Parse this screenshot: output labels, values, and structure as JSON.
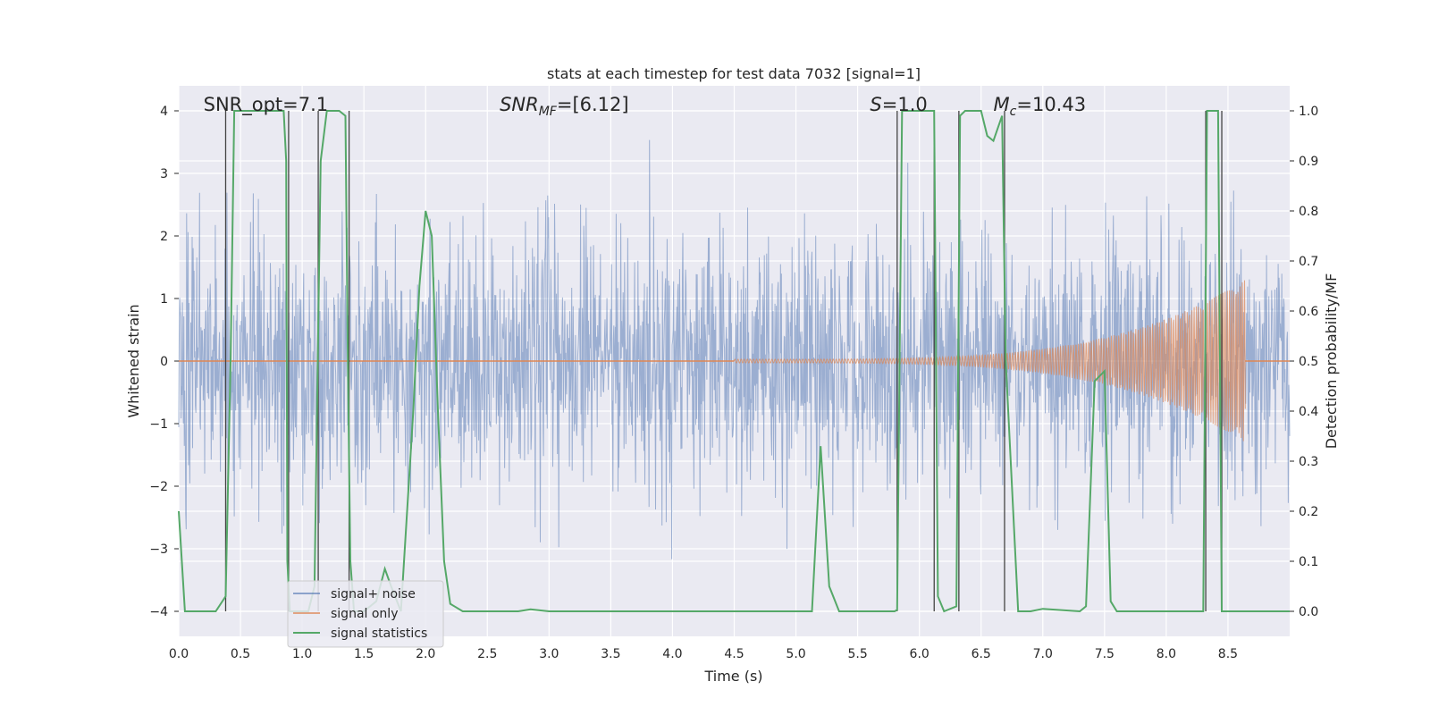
{
  "chart_data": {
    "type": "line",
    "title": "stats at each timestep for test data 7032 [signal=1]",
    "xlabel": "Time (s)",
    "ylabel_left": "Whitened strain",
    "ylabel_right": "Detection probability/MF",
    "xlim": [
      0,
      9
    ],
    "ylim_left": [
      -4.4,
      4.4
    ],
    "ylim_right": [
      -0.05,
      1.05
    ],
    "x_ticks": [
      "0.0",
      "0.5",
      "1.0",
      "1.5",
      "2.0",
      "2.5",
      "3.0",
      "3.5",
      "4.0",
      "4.5",
      "5.0",
      "5.5",
      "6.0",
      "6.5",
      "7.0",
      "7.5",
      "8.0",
      "8.5"
    ],
    "x_tick_values": [
      0,
      0.5,
      1,
      1.5,
      2,
      2.5,
      3,
      3.5,
      4,
      4.5,
      5,
      5.5,
      6,
      6.5,
      7,
      7.5,
      8,
      8.5
    ],
    "y_left_ticks": [
      "4",
      "3",
      "2",
      "1",
      "0",
      "−1",
      "−2",
      "−3",
      "−4"
    ],
    "y_left_tick_values": [
      4,
      3,
      2,
      1,
      0,
      -1,
      -2,
      -3,
      -4
    ],
    "y_right_ticks": [
      "1.0",
      "0.9",
      "0.8",
      "0.7",
      "0.6",
      "0.5",
      "0.4",
      "0.3",
      "0.2",
      "0.1",
      "0.0"
    ],
    "y_right_tick_values": [
      1.0,
      0.9,
      0.8,
      0.7,
      0.6,
      0.5,
      0.4,
      0.3,
      0.2,
      0.1,
      0.0
    ],
    "grid": true,
    "legend_position": "bottom-left",
    "annotations": [
      {
        "label": "SNR_opt=7.1",
        "x": 0.2
      },
      {
        "label": "SNR",
        "sub": "MF",
        "tail": "=[6.12]",
        "italic": true,
        "x": 2.6
      },
      {
        "label": "S",
        "tail": "=1.0",
        "italic": true,
        "x": 5.6
      },
      {
        "label": "M",
        "sub": "c",
        "tail": "=10.43",
        "italic": true,
        "x": 6.6
      }
    ],
    "series": [
      {
        "name": "signal+ noise",
        "color": "#4c72b0",
        "opacity": 0.5,
        "envelope_typical": 2.2,
        "envelope_peak": 3.9,
        "y_range": [
          -3.4,
          3.9
        ]
      },
      {
        "name": "signal only",
        "color": "#dd8452",
        "chirp": {
          "start": 4.5,
          "end": 8.64,
          "amplitude_start": 0.03,
          "amplitude_end": 1.3
        }
      },
      {
        "name": "signal statistics",
        "color": "#55a868",
        "axis": "right",
        "x": [
          0.0,
          0.05,
          0.15,
          0.3,
          0.38,
          0.42,
          0.45,
          0.5,
          0.85,
          0.87,
          0.88,
          0.9,
          0.95,
          1.05,
          1.1,
          1.12,
          1.15,
          1.2,
          1.3,
          1.35,
          1.37,
          1.39,
          1.42,
          1.5,
          1.6,
          1.67,
          1.72,
          1.8,
          1.9,
          1.95,
          2.0,
          2.05,
          2.1,
          2.15,
          2.2,
          2.3,
          2.5,
          2.75,
          2.85,
          3.0,
          3.5,
          4.0,
          4.5,
          5.0,
          5.13,
          5.2,
          5.27,
          5.35,
          5.5,
          5.8,
          5.82,
          5.86,
          5.9,
          6.12,
          6.15,
          6.2,
          6.3,
          6.33,
          6.37,
          6.5,
          6.55,
          6.6,
          6.67,
          6.7,
          6.8,
          6.9,
          7.0,
          7.3,
          7.35,
          7.42,
          7.5,
          7.55,
          7.6,
          7.7,
          7.8,
          8.0,
          8.3,
          8.33,
          8.37,
          8.42,
          8.45,
          8.5,
          8.55,
          8.6,
          9.0
        ],
        "values": [
          0.2,
          0.0,
          0.0,
          0.0,
          0.03,
          0.5,
          1.0,
          1.0,
          1.0,
          0.9,
          0.1,
          0.0,
          0.0,
          0.0,
          0.05,
          0.4,
          0.9,
          1.0,
          1.0,
          0.99,
          0.5,
          0.1,
          0.0,
          0.0,
          0.02,
          0.085,
          0.05,
          0.0,
          0.4,
          0.65,
          0.8,
          0.75,
          0.4,
          0.1,
          0.015,
          0.0,
          0.0,
          0.0,
          0.004,
          0.0,
          0.0,
          0.0,
          0.0,
          0.0,
          0.0,
          0.33,
          0.05,
          0.0,
          0.0,
          0.0,
          0.003,
          1.0,
          1.0,
          1.0,
          0.03,
          0.0,
          0.01,
          0.99,
          1.0,
          1.0,
          0.95,
          0.94,
          0.99,
          0.5,
          0.0,
          0.0,
          0.005,
          0.0,
          0.01,
          0.46,
          0.48,
          0.02,
          0.0,
          0.0,
          0.0,
          0.0,
          0.0,
          1.0,
          1.0,
          1.0,
          0.0,
          0.0,
          0.0,
          0.0,
          0.0
        ]
      }
    ],
    "vlines": [
      0.38,
      0.89,
      1.13,
      1.38,
      5.82,
      6.12,
      6.32,
      6.69,
      8.32,
      8.45
    ]
  }
}
